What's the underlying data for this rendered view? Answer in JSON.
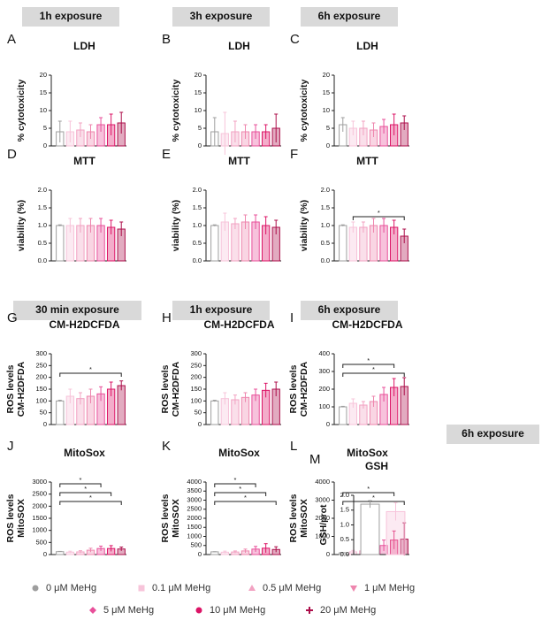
{
  "headers": [
    "1h exposure",
    "3h exposure",
    "6h exposure",
    "30 min exposure",
    "1h exposure",
    "6h exposure",
    "6h exposure"
  ],
  "legend": {
    "items": [
      {
        "name": "0 μM MeHg",
        "color": "#9e9e9e",
        "marker": "circle"
      },
      {
        "name": "0.1 μM MeHg",
        "color": "#f7c4da",
        "marker": "square"
      },
      {
        "name": "0.5 μM MeHg",
        "color": "#f2a2c2",
        "marker": "triangle"
      },
      {
        "name": "1 μM MeHg",
        "color": "#ee86ae",
        "marker": "triangle-down"
      },
      {
        "name": "5 μM MeHg",
        "color": "#e8509a",
        "marker": "diamond"
      },
      {
        "name": "10 μM MeHg",
        "color": "#dc1466",
        "marker": "circle"
      },
      {
        "name": "20 μM MeHg",
        "color": "#ad0f4b",
        "marker": "plus"
      }
    ]
  },
  "chart_data": [
    {
      "type": "bar",
      "panel": "A",
      "title": "LDH",
      "ylabel": [
        "% cytotoxicity"
      ],
      "values": [
        4,
        4,
        4.5,
        4,
        6,
        6,
        6.5
      ],
      "errors": [
        3,
        3,
        2,
        2,
        2,
        3,
        3
      ],
      "ylim": [
        0,
        20
      ],
      "yticks": [
        0,
        5,
        10,
        15,
        20
      ],
      "annotations": []
    },
    {
      "type": "bar",
      "panel": "B",
      "title": "LDH",
      "ylabel": [
        "% cytotoxicity"
      ],
      "values": [
        4,
        3.5,
        4,
        4,
        4,
        4,
        5
      ],
      "errors": [
        4,
        6,
        3,
        2,
        2,
        2,
        4
      ],
      "ylim": [
        0,
        20
      ],
      "yticks": [
        0,
        5,
        10,
        15,
        20
      ],
      "annotations": []
    },
    {
      "type": "bar",
      "panel": "C",
      "title": "LDH",
      "ylabel": [
        "% cytotoxicity"
      ],
      "values": [
        6,
        5,
        5,
        4.5,
        5.5,
        6,
        6.5
      ],
      "errors": [
        2,
        2,
        2,
        2,
        2,
        3,
        2
      ],
      "ylim": [
        0,
        20
      ],
      "yticks": [
        0,
        5,
        10,
        15,
        20
      ],
      "annotations": []
    },
    {
      "type": "bar",
      "panel": "D",
      "title": "MTT",
      "ylabel": [
        "viability (%)"
      ],
      "values": [
        1,
        1,
        1,
        1,
        1,
        0.95,
        0.9
      ],
      "errors": [
        0.02,
        0.2,
        0.2,
        0.2,
        0.2,
        0.2,
        0.2
      ],
      "ylim": [
        0,
        2
      ],
      "yticks": [
        {
          "value": 0,
          "label": "0.0"
        },
        {
          "value": 0.5,
          "label": "0.5"
        },
        {
          "value": 1,
          "label": "1.0"
        },
        {
          "value": 1.5,
          "label": "1.5"
        },
        {
          "value": 2,
          "label": "2.0"
        }
      ],
      "annotations": []
    },
    {
      "type": "bar",
      "panel": "E",
      "title": "MTT",
      "ylabel": [
        "viability (%)"
      ],
      "values": [
        1,
        1.1,
        1.05,
        1.1,
        1.1,
        1,
        0.95
      ],
      "errors": [
        0.02,
        0.25,
        0.15,
        0.2,
        0.2,
        0.25,
        0.2
      ],
      "ylim": [
        0,
        2
      ],
      "yticks": [
        {
          "value": 0,
          "label": "0.0"
        },
        {
          "value": 0.5,
          "label": "0.5"
        },
        {
          "value": 1,
          "label": "1.0"
        },
        {
          "value": 1.5,
          "label": "1.5"
        },
        {
          "value": 2,
          "label": "2.0"
        }
      ],
      "annotations": []
    },
    {
      "type": "bar",
      "panel": "F",
      "title": "MTT",
      "ylabel": [
        "viability (%)"
      ],
      "values": [
        1,
        0.95,
        0.95,
        1,
        1,
        0.95,
        0.7
      ],
      "errors": [
        0.02,
        0.15,
        0.15,
        0.2,
        0.2,
        0.2,
        0.2
      ],
      "ylim": [
        0,
        2
      ],
      "yticks": [
        {
          "value": 0,
          "label": "0.0"
        },
        {
          "value": 0.5,
          "label": "0.5"
        },
        {
          "value": 1,
          "label": "1.0"
        },
        {
          "value": 1.5,
          "label": "1.5"
        },
        {
          "value": 2,
          "label": "2.0"
        }
      ],
      "annotations": [
        {
          "text": "*",
          "from": 1,
          "to": 6
        }
      ]
    },
    {
      "type": "bar",
      "panel": "G",
      "title": "CM-H2DCFDA",
      "ylabel": [
        "ROS levels",
        "CM-H2DFDA"
      ],
      "values": [
        100,
        120,
        110,
        120,
        130,
        150,
        165
      ],
      "errors": [
        3,
        30,
        25,
        30,
        30,
        30,
        20
      ],
      "ylim": [
        0,
        300
      ],
      "yticks": [
        0,
        50,
        100,
        150,
        200,
        250,
        300
      ],
      "annotations": [
        {
          "text": "*",
          "from": 0,
          "to": 6
        }
      ]
    },
    {
      "type": "bar",
      "panel": "H",
      "title": "CM-H2DCFDA",
      "ylabel": [
        "ROS levels",
        "CM-H2DFDA"
      ],
      "values": [
        100,
        110,
        105,
        115,
        125,
        145,
        150
      ],
      "errors": [
        3,
        25,
        20,
        20,
        25,
        30,
        30
      ],
      "ylim": [
        0,
        300
      ],
      "yticks": [
        0,
        50,
        100,
        150,
        200,
        250,
        300
      ],
      "annotations": []
    },
    {
      "type": "bar",
      "panel": "I",
      "title": "CM-H2DCFDA",
      "ylabel": [
        "ROS levels",
        "CM-H2DFDA"
      ],
      "values": [
        100,
        120,
        110,
        130,
        170,
        210,
        215
      ],
      "errors": [
        3,
        25,
        20,
        30,
        40,
        50,
        50
      ],
      "ylim": [
        0,
        400
      ],
      "yticks": [
        0,
        100,
        200,
        300,
        400
      ],
      "annotations": [
        {
          "text": "*",
          "from": 0,
          "to": 5
        },
        {
          "text": "*",
          "from": 0,
          "to": 6
        }
      ]
    },
    {
      "type": "bar",
      "panel": "J",
      "title": "MitoSox",
      "ylabel": [
        "ROS levels",
        "MitoSOX"
      ],
      "values": [
        120,
        100,
        110,
        180,
        250,
        250,
        230
      ],
      "errors": [
        10,
        40,
        50,
        80,
        100,
        120,
        80
      ],
      "ylim": [
        0,
        3000
      ],
      "yticks": [
        0,
        500,
        1000,
        1500,
        2000,
        2500,
        3000
      ],
      "annotations": [
        {
          "text": "*",
          "from": 0,
          "to": 4
        },
        {
          "text": "*",
          "from": 0,
          "to": 5
        },
        {
          "text": "*",
          "from": 0,
          "to": 6
        }
      ]
    },
    {
      "type": "bar",
      "panel": "K",
      "title": "MitoSox",
      "ylabel": [
        "ROS levels",
        "MitoSOX"
      ],
      "values": [
        150,
        130,
        140,
        200,
        300,
        350,
        280
      ],
      "errors": [
        10,
        60,
        60,
        100,
        150,
        250,
        150
      ],
      "ylim": [
        0,
        4000
      ],
      "yticks": [
        0,
        500,
        1000,
        1500,
        2000,
        2500,
        3000,
        3500,
        4000
      ],
      "annotations": [
        {
          "text": "*",
          "from": 0,
          "to": 4
        },
        {
          "text": "*",
          "from": 0,
          "to": 5
        },
        {
          "text": "*",
          "from": 0,
          "to": 6
        }
      ]
    },
    {
      "type": "bar",
      "panel": "L",
      "title": "MitoSox",
      "ylabel": [
        "ROS levels",
        "MitoSOX"
      ],
      "values": [
        100,
        150,
        200,
        250,
        500,
        800,
        850
      ],
      "errors": [
        10,
        80,
        100,
        150,
        300,
        500,
        900
      ],
      "ylim": [
        0,
        4000
      ],
      "yticks": [
        0,
        1000,
        2000,
        3000,
        4000
      ],
      "annotations": [
        {
          "text": "*",
          "from": 0,
          "to": 5
        },
        {
          "text": "*",
          "from": 0,
          "to": 6
        }
      ]
    },
    {
      "type": "bar",
      "panel": "M",
      "title": "GSH",
      "ylabel": [
        "GSH/prot"
      ],
      "values": [
        1.7,
        1.45
      ],
      "errors": [
        0.12,
        0.3
      ],
      "ylim": [
        0,
        2
      ],
      "yticks": [
        {
          "value": 0,
          "label": "0.0"
        },
        {
          "value": 0.5,
          "label": "0.5"
        },
        {
          "value": 1,
          "label": "1.0"
        },
        {
          "value": 1.5,
          "label": "1.5"
        },
        {
          "value": 2,
          "label": "2.0"
        }
      ],
      "annotations": []
    }
  ]
}
